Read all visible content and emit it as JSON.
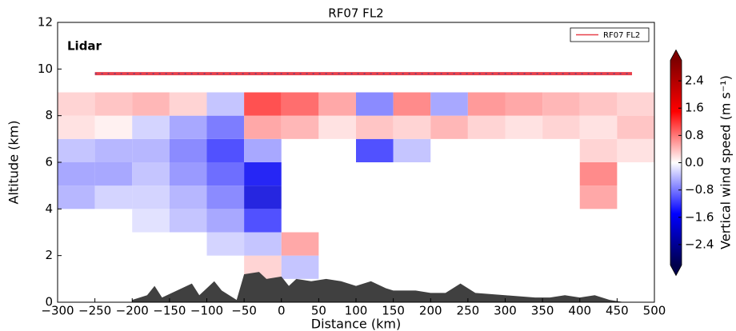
{
  "chart_data": {
    "type": "curtain",
    "title": "RF07 FL2",
    "annotation": "Lidar",
    "xlabel": "Distance (km)",
    "ylabel": "Altitude (km)",
    "xlim": [
      -300,
      500
    ],
    "xticks": [
      {
        "value": -300,
        "label": "−300"
      },
      {
        "value": -250,
        "label": "−250"
      },
      {
        "value": -200,
        "label": "−200"
      },
      {
        "value": -150,
        "label": "−150"
      },
      {
        "value": -100,
        "label": "−100"
      },
      {
        "value": -50,
        "label": "−50"
      },
      0,
      50,
      100,
      150,
      200,
      250,
      300,
      350,
      400,
      450,
      500
    ],
    "ylim": [
      0,
      12
    ],
    "yticks": [
      0,
      2,
      4,
      6,
      8,
      10,
      12
    ],
    "legend": "upper right",
    "series": [
      {
        "name": "RF07 FL2",
        "color": "#e8404b",
        "x": [
          -250,
          470
        ],
        "values": [
          9.8,
          9.8
        ]
      }
    ],
    "terrain": {
      "color": "#404040",
      "x": [
        -200,
        -180,
        -170,
        -160,
        -120,
        -110,
        -90,
        -80,
        -60,
        -50,
        -30,
        -20,
        0,
        10,
        20,
        40,
        60,
        80,
        100,
        120,
        140,
        150,
        180,
        200,
        220,
        240,
        260,
        300,
        340,
        360,
        380,
        400,
        420,
        440,
        460
      ],
      "values": [
        0.1,
        0.3,
        0.7,
        0.2,
        0.8,
        0.3,
        0.9,
        0.5,
        0.1,
        1.2,
        1.3,
        1.0,
        1.1,
        0.7,
        1.0,
        0.9,
        1.0,
        0.9,
        0.7,
        0.9,
        0.6,
        0.5,
        0.5,
        0.4,
        0.4,
        0.8,
        0.4,
        0.3,
        0.2,
        0.2,
        0.3,
        0.2,
        0.3,
        0.1,
        0
      ]
    },
    "heatmap": {
      "x_bins": [
        -300,
        -250,
        -200,
        -150,
        -100,
        -50,
        0,
        50,
        100,
        150,
        200,
        250,
        300,
        350,
        400,
        450,
        500
      ],
      "y_bins": [
        0,
        1,
        2,
        3,
        4,
        5,
        6,
        7,
        8,
        9
      ],
      "values": [
        [
          null,
          null,
          null,
          null,
          null,
          null,
          null,
          null,
          null,
          null,
          null,
          null,
          null,
          null,
          null,
          null
        ],
        [
          null,
          null,
          null,
          null,
          null,
          0.3,
          -0.4,
          null,
          null,
          null,
          null,
          null,
          null,
          null,
          null,
          null
        ],
        [
          null,
          null,
          null,
          null,
          -0.3,
          -0.4,
          0.6,
          null,
          null,
          null,
          null,
          null,
          null,
          null,
          null,
          null
        ],
        [
          null,
          null,
          -0.2,
          -0.4,
          -0.6,
          -1.2,
          null,
          null,
          null,
          null,
          null,
          null,
          null,
          null,
          null,
          null
        ],
        [
          -0.5,
          -0.3,
          -0.3,
          -0.5,
          -0.8,
          -1.8,
          null,
          null,
          null,
          null,
          null,
          null,
          null,
          null,
          0.6,
          null
        ],
        [
          -0.6,
          -0.6,
          -0.4,
          -0.7,
          -1.0,
          -1.6,
          null,
          null,
          null,
          null,
          null,
          null,
          null,
          null,
          0.8,
          null
        ],
        [
          -0.4,
          -0.5,
          -0.5,
          -0.8,
          -1.2,
          -0.6,
          null,
          null,
          -1.2,
          -0.4,
          null,
          null,
          null,
          null,
          0.3,
          0.2
        ],
        [
          0.2,
          0.1,
          -0.3,
          -0.6,
          -0.9,
          0.6,
          0.5,
          0.2,
          0.4,
          0.3,
          0.5,
          0.3,
          0.2,
          0.3,
          0.2,
          0.4
        ],
        [
          0.3,
          0.4,
          0.5,
          0.3,
          -0.4,
          1.2,
          1.0,
          0.6,
          -0.8,
          0.8,
          -0.6,
          0.7,
          0.6,
          0.5,
          0.4,
          0.3
        ]
      ]
    },
    "colorbar": {
      "label": "Vertical wind speed (m s⁻¹)",
      "clim": [
        -3,
        3
      ],
      "colormap": [
        "#00004c",
        "#0000ff",
        "#ffffff",
        "#ff0000",
        "#7f0000"
      ],
      "ticks": [
        2.4,
        1.6,
        0.8,
        {
          "value": 0,
          "label": "0.0"
        },
        {
          "value": -0.8,
          "label": "−0.8"
        },
        {
          "value": -1.6,
          "label": "−1.6"
        },
        {
          "value": -2.4,
          "label": "−2.4"
        }
      ]
    }
  }
}
